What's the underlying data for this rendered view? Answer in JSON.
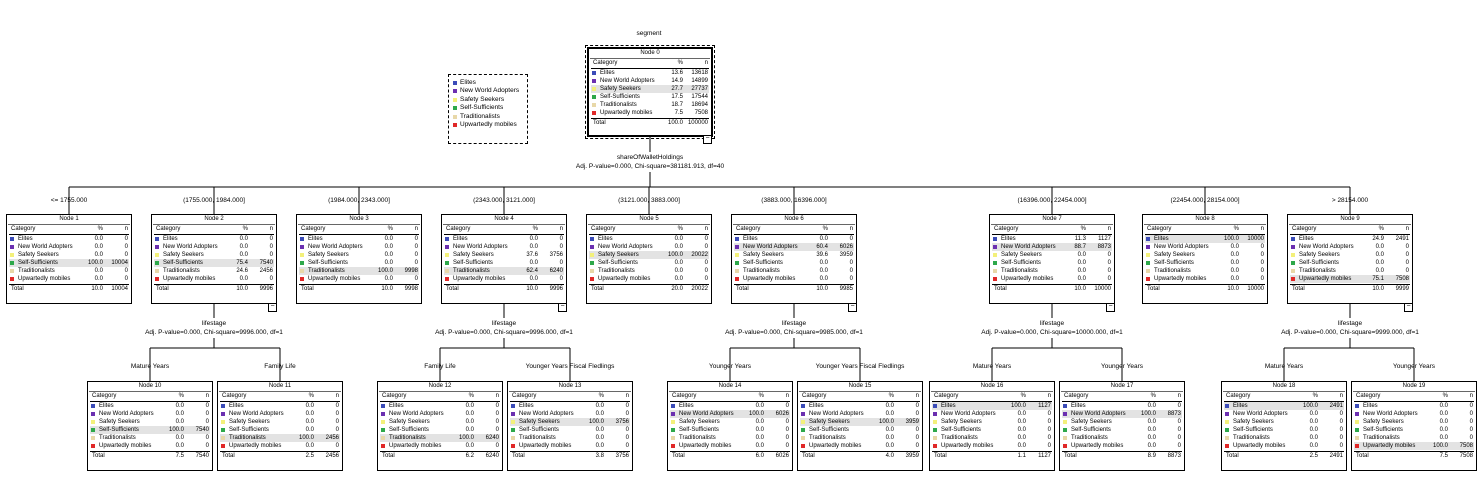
{
  "title": "segment",
  "colors": {
    "Elites": "#3b4bb8",
    "New World Adopters": "#6b2fb0",
    "Safety Seekers": "#f3f07a",
    "Self-Sufficients": "#2ea84a",
    "Traditionalists": "#e8d8a8",
    "Upwartedly mobiles": "#e02828"
  },
  "legend": [
    "Elites",
    "New World Adopters",
    "Safety Seekers",
    "Self-Sufficients",
    "Traditionalists",
    "Upwartedly mobiles"
  ],
  "table_header": {
    "category": "Category",
    "pct": "%",
    "n": "n",
    "total": "Total"
  },
  "root": {
    "title": "Node 0",
    "rows": [
      [
        "13.6",
        "13618"
      ],
      [
        "14.9",
        "14899"
      ],
      [
        "27.7",
        "27737"
      ],
      [
        "17.5",
        "17544"
      ],
      [
        "18.7",
        "18694"
      ],
      [
        "7.5",
        "7508"
      ]
    ],
    "highlight": 2,
    "total": [
      "100.0",
      "100000"
    ]
  },
  "root_split": {
    "variable": "shareOfWalletHoldings",
    "stat": "Adj. P-value=0.000, Chi-square=381181.913, df=40"
  },
  "level1": [
    {
      "edge": "<= 1755.000",
      "title": "Node 1",
      "rows": [
        [
          "0.0",
          "0"
        ],
        [
          "0.0",
          "0"
        ],
        [
          "0.0",
          "0"
        ],
        [
          "100.0",
          "10004"
        ],
        [
          "0.0",
          "0"
        ],
        [
          "0.0",
          "0"
        ]
      ],
      "highlight": 3,
      "total": [
        "10.0",
        "10004"
      ]
    },
    {
      "edge": "(1755.000, 1984.000]",
      "title": "Node 2",
      "rows": [
        [
          "0.0",
          "0"
        ],
        [
          "0.0",
          "0"
        ],
        [
          "0.0",
          "0"
        ],
        [
          "75.4",
          "7540"
        ],
        [
          "24.6",
          "2456"
        ],
        [
          "0.0",
          "0"
        ]
      ],
      "highlight": 3,
      "total": [
        "10.0",
        "9996"
      ],
      "split": {
        "variable": "lifestage",
        "stat": "Adj. P-value=0.000, Chi-square=9996.000, df=1"
      }
    },
    {
      "edge": "(1984.000, 2343.000]",
      "title": "Node 3",
      "rows": [
        [
          "0.0",
          "0"
        ],
        [
          "0.0",
          "0"
        ],
        [
          "0.0",
          "0"
        ],
        [
          "0.0",
          "0"
        ],
        [
          "100.0",
          "9998"
        ],
        [
          "0.0",
          "0"
        ]
      ],
      "highlight": 4,
      "total": [
        "10.0",
        "9998"
      ]
    },
    {
      "edge": "(2343.000, 3121.000]",
      "title": "Node 4",
      "rows": [
        [
          "0.0",
          "0"
        ],
        [
          "0.0",
          "0"
        ],
        [
          "37.6",
          "3756"
        ],
        [
          "0.0",
          "0"
        ],
        [
          "62.4",
          "6240"
        ],
        [
          "0.0",
          "0"
        ]
      ],
      "highlight": 4,
      "total": [
        "10.0",
        "9996"
      ],
      "split": {
        "variable": "lifestage",
        "stat": "Adj. P-value=0.000, Chi-square=9996.000, df=1"
      }
    },
    {
      "edge": "(3121.000, 3883.000]",
      "title": "Node 5",
      "rows": [
        [
          "0.0",
          "0"
        ],
        [
          "0.0",
          "0"
        ],
        [
          "100.0",
          "20022"
        ],
        [
          "0.0",
          "0"
        ],
        [
          "0.0",
          "0"
        ],
        [
          "0.0",
          "0"
        ]
      ],
      "highlight": 2,
      "total": [
        "20.0",
        "20022"
      ]
    },
    {
      "edge": "(3883.000, 16396.000]",
      "title": "Node 6",
      "rows": [
        [
          "0.0",
          "0"
        ],
        [
          "60.4",
          "6026"
        ],
        [
          "39.6",
          "3959"
        ],
        [
          "0.0",
          "0"
        ],
        [
          "0.0",
          "0"
        ],
        [
          "0.0",
          "0"
        ]
      ],
      "highlight": 1,
      "total": [
        "10.0",
        "9985"
      ],
      "split": {
        "variable": "lifestage",
        "stat": "Adj. P-value=0.000, Chi-square=9985.000, df=1"
      }
    },
    {
      "edge": "(16396.000, 22454.000]",
      "title": "Node 7",
      "rows": [
        [
          "11.3",
          "1127"
        ],
        [
          "88.7",
          "8873"
        ],
        [
          "0.0",
          "0"
        ],
        [
          "0.0",
          "0"
        ],
        [
          "0.0",
          "0"
        ],
        [
          "0.0",
          "0"
        ]
      ],
      "highlight": 1,
      "total": [
        "10.0",
        "10000"
      ],
      "split": {
        "variable": "lifestage",
        "stat": "Adj. P-value=0.000, Chi-square=10000.000, df=1"
      }
    },
    {
      "edge": "(22454.000, 28154.000]",
      "title": "Node 8",
      "rows": [
        [
          "100.0",
          "10000"
        ],
        [
          "0.0",
          "0"
        ],
        [
          "0.0",
          "0"
        ],
        [
          "0.0",
          "0"
        ],
        [
          "0.0",
          "0"
        ],
        [
          "0.0",
          "0"
        ]
      ],
      "highlight": 0,
      "total": [
        "10.0",
        "10000"
      ]
    },
    {
      "edge": "> 28154.000",
      "title": "Node 9",
      "rows": [
        [
          "24.9",
          "2491"
        ],
        [
          "0.0",
          "0"
        ],
        [
          "0.0",
          "0"
        ],
        [
          "0.0",
          "0"
        ],
        [
          "0.0",
          "0"
        ],
        [
          "75.1",
          "7508"
        ]
      ],
      "highlight": 5,
      "total": [
        "10.0",
        "9999"
      ],
      "split": {
        "variable": "lifestage",
        "stat": "Adj. P-value=0.000, Chi-square=9999.000, df=1"
      }
    }
  ],
  "level2": [
    {
      "parent": 1,
      "edge": "Mature Years",
      "title": "Node 10",
      "rows": [
        [
          "0.0",
          "0"
        ],
        [
          "0.0",
          "0"
        ],
        [
          "0.0",
          "0"
        ],
        [
          "100.0",
          "7540"
        ],
        [
          "0.0",
          "0"
        ],
        [
          "0.0",
          "0"
        ]
      ],
      "highlight": 3,
      "total": [
        "7.5",
        "7540"
      ]
    },
    {
      "parent": 1,
      "edge": "Family Life",
      "title": "Node 11",
      "rows": [
        [
          "0.0",
          "0"
        ],
        [
          "0.0",
          "0"
        ],
        [
          "0.0",
          "0"
        ],
        [
          "0.0",
          "0"
        ],
        [
          "100.0",
          "2456"
        ],
        [
          "0.0",
          "0"
        ]
      ],
      "highlight": 4,
      "total": [
        "2.5",
        "2456"
      ]
    },
    {
      "parent": 3,
      "edge": "Family Life",
      "title": "Node 12",
      "rows": [
        [
          "0.0",
          "0"
        ],
        [
          "0.0",
          "0"
        ],
        [
          "0.0",
          "0"
        ],
        [
          "0.0",
          "0"
        ],
        [
          "100.0",
          "6240"
        ],
        [
          "0.0",
          "0"
        ]
      ],
      "highlight": 4,
      "total": [
        "6.2",
        "6240"
      ]
    },
    {
      "parent": 3,
      "edge": "Younger Years Fiscal Fledlings",
      "title": "Node 13",
      "rows": [
        [
          "0.0",
          "0"
        ],
        [
          "0.0",
          "0"
        ],
        [
          "100.0",
          "3756"
        ],
        [
          "0.0",
          "0"
        ],
        [
          "0.0",
          "0"
        ],
        [
          "0.0",
          "0"
        ]
      ],
      "highlight": 2,
      "total": [
        "3.8",
        "3756"
      ]
    },
    {
      "parent": 5,
      "edge": "Younger Years",
      "title": "Node 14",
      "rows": [
        [
          "0.0",
          "0"
        ],
        [
          "100.0",
          "6026"
        ],
        [
          "0.0",
          "0"
        ],
        [
          "0.0",
          "0"
        ],
        [
          "0.0",
          "0"
        ],
        [
          "0.0",
          "0"
        ]
      ],
      "highlight": 1,
      "total": [
        "6.0",
        "6026"
      ]
    },
    {
      "parent": 5,
      "edge": "Younger Years Fiscal Fledlings",
      "title": "Node 15",
      "rows": [
        [
          "0.0",
          "0"
        ],
        [
          "0.0",
          "0"
        ],
        [
          "100.0",
          "3959"
        ],
        [
          "0.0",
          "0"
        ],
        [
          "0.0",
          "0"
        ],
        [
          "0.0",
          "0"
        ]
      ],
      "highlight": 2,
      "total": [
        "4.0",
        "3959"
      ]
    },
    {
      "parent": 6,
      "edge": "Mature Years",
      "title": "Node 16",
      "rows": [
        [
          "100.0",
          "1127"
        ],
        [
          "0.0",
          "0"
        ],
        [
          "0.0",
          "0"
        ],
        [
          "0.0",
          "0"
        ],
        [
          "0.0",
          "0"
        ],
        [
          "0.0",
          "0"
        ]
      ],
      "highlight": 0,
      "total": [
        "1.1",
        "1127"
      ]
    },
    {
      "parent": 6,
      "edge": "Younger Years",
      "title": "Node 17",
      "rows": [
        [
          "0.0",
          "0"
        ],
        [
          "100.0",
          "8873"
        ],
        [
          "0.0",
          "0"
        ],
        [
          "0.0",
          "0"
        ],
        [
          "0.0",
          "0"
        ],
        [
          "0.0",
          "0"
        ]
      ],
      "highlight": 1,
      "total": [
        "8.9",
        "8873"
      ]
    },
    {
      "parent": 8,
      "edge": "Mature Years",
      "title": "Node 18",
      "rows": [
        [
          "100.0",
          "2491"
        ],
        [
          "0.0",
          "0"
        ],
        [
          "0.0",
          "0"
        ],
        [
          "0.0",
          "0"
        ],
        [
          "0.0",
          "0"
        ],
        [
          "0.0",
          "0"
        ]
      ],
      "highlight": 0,
      "total": [
        "2.5",
        "2491"
      ]
    },
    {
      "parent": 8,
      "edge": "Younger Years",
      "title": "Node 19",
      "rows": [
        [
          "0.0",
          "0"
        ],
        [
          "0.0",
          "0"
        ],
        [
          "0.0",
          "0"
        ],
        [
          "0.0",
          "0"
        ],
        [
          "0.0",
          "0"
        ],
        [
          "100.0",
          "7508"
        ]
      ],
      "highlight": 5,
      "total": [
        "7.5",
        "7508"
      ]
    }
  ]
}
